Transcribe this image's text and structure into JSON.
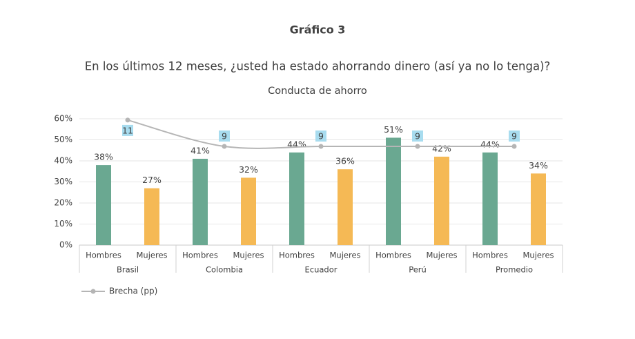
{
  "chart_data": {
    "type": "bar",
    "label": "Gráfico 3",
    "title": "En los últimos 12 meses, ¿usted ha estado ahorrando dinero (así ya no lo tenga)?",
    "subtitle": "Conducta de ahorro",
    "categories": [
      "Brasil",
      "Colombia",
      "Ecuador",
      "Perú",
      "Promedio"
    ],
    "series": [
      {
        "name": "Hombres",
        "color": "#6aa891",
        "values": [
          38,
          41,
          44,
          51,
          44
        ],
        "value_labels": [
          "38%",
          "41%",
          "44%",
          "51%",
          "44%"
        ]
      },
      {
        "name": "Mujeres",
        "color": "#f5b955",
        "values": [
          27,
          32,
          36,
          42,
          34
        ],
        "value_labels": [
          "27%",
          "32%",
          "36%",
          "42%",
          "34%"
        ]
      },
      {
        "name": "Brecha (pp)",
        "type": "line",
        "axis": "y2",
        "color": "#b5b5b5",
        "label_color": "#a8dcef",
        "values": [
          11,
          9,
          9,
          9,
          9
        ]
      }
    ],
    "ylim": [
      0,
      60
    ],
    "yticks": [
      {
        "value": 0,
        "label": "0%"
      },
      {
        "value": 10,
        "label": "10%"
      },
      {
        "value": 20,
        "label": "20%"
      },
      {
        "value": 30,
        "label": "30%"
      },
      {
        "value": 40,
        "label": "40%"
      },
      {
        "value": 50,
        "label": "50%"
      },
      {
        "value": 60,
        "label": "60%"
      }
    ],
    "y2lim": [
      1.5,
      11.1
    ],
    "grid": true,
    "legend": "bottom-left"
  }
}
